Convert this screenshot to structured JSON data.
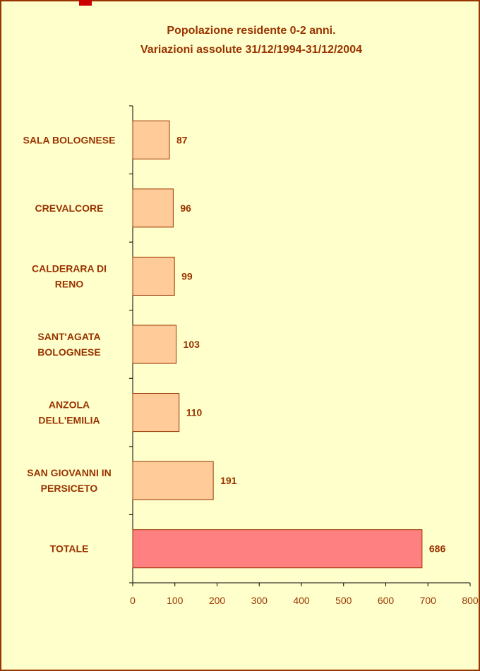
{
  "chart_data": {
    "type": "barh",
    "title": "Popolazione residente 0-2 anni.",
    "subtitle": "Variazioni assolute 31/12/1994-31/12/2004",
    "categories": [
      "SALA BOLOGNESE",
      "CREVALCORE",
      "CALDERARA DI\nRENO",
      "SANT'AGATA\nBOLOGNESE",
      "ANZOLA\nDELL'EMILIA",
      "SAN GIOVANNI IN\nPERSICETO",
      "TOTALE"
    ],
    "values": [
      87,
      96,
      99,
      103,
      110,
      191,
      686
    ],
    "colors": [
      "#ffcc99",
      "#ffcc99",
      "#ffcc99",
      "#ffcc99",
      "#ffcc99",
      "#ffcc99",
      "#ff8080"
    ],
    "xlim": [
      0,
      800
    ],
    "xticks": [
      0,
      100,
      200,
      300,
      400,
      500,
      600,
      700,
      800
    ]
  }
}
